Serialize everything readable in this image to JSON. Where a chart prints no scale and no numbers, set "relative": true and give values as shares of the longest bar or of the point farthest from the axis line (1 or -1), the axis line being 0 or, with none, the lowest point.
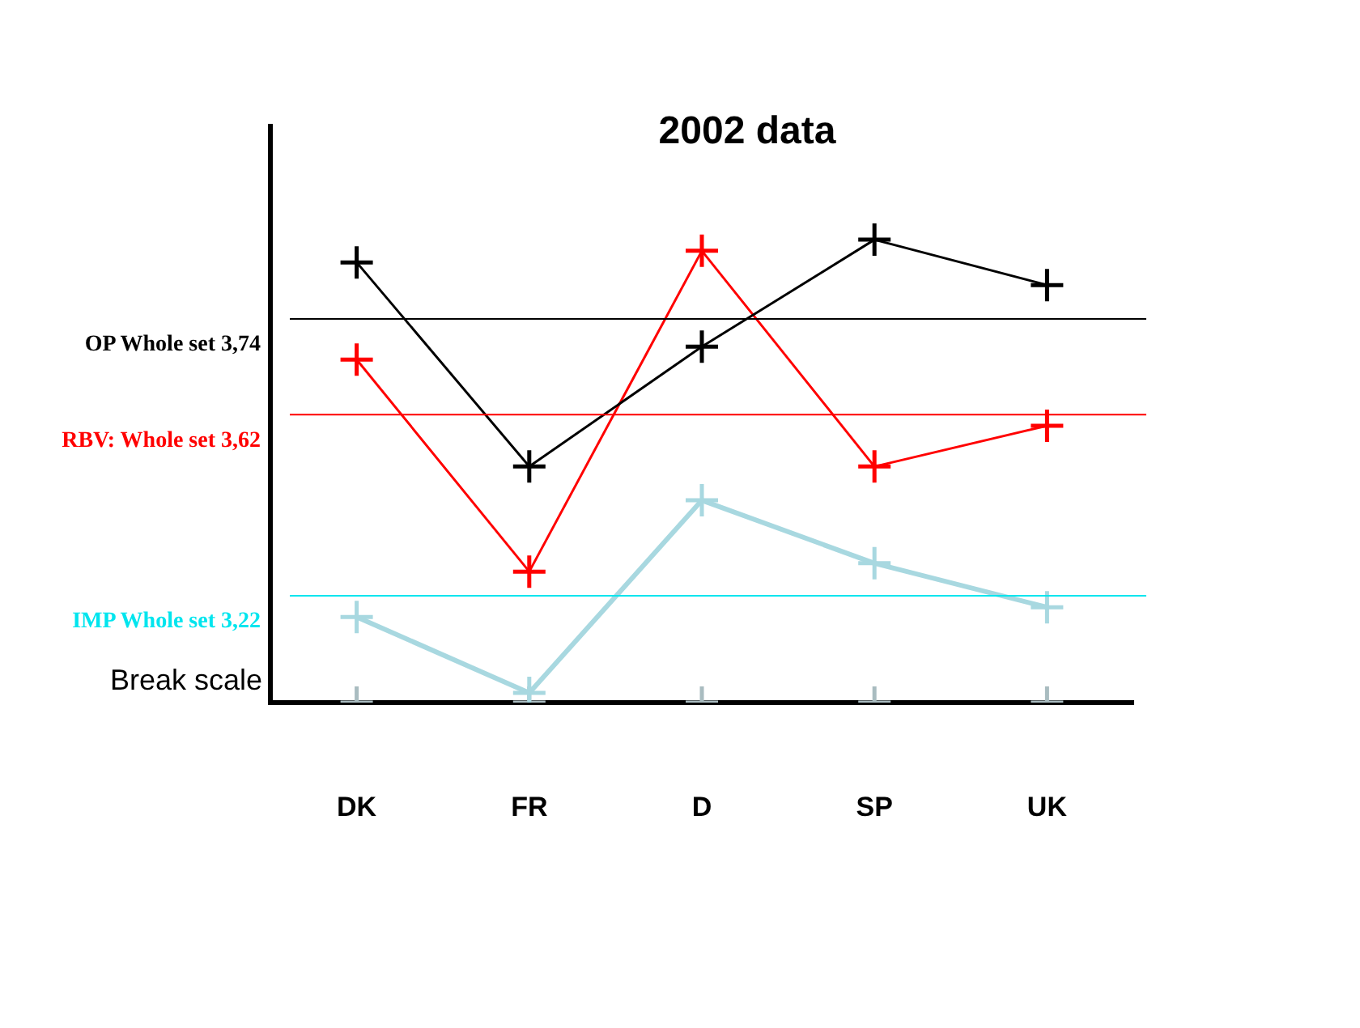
{
  "chart_data": {
    "type": "line",
    "title": "2002 data",
    "categories": [
      "DK",
      "FR",
      "D",
      "SP",
      "UK"
    ],
    "relative": true,
    "marker": "cross",
    "series": [
      {
        "color": "#000000",
        "values": [
          0.951,
          0.51,
          0.769,
          1,
          0.902
        ]
      },
      {
        "color": "#ff0000",
        "values": [
          0.741,
          0.283,
          0.976,
          0.51,
          0.598
        ]
      },
      {
        "color": "#a8d8e0",
        "values": [
          0.185,
          0.021,
          0.437,
          0.301,
          0.206
        ]
      },
      {
        "type": "scatter",
        "color": "#a9bcc0",
        "values": [
          0,
          0,
          0,
          0,
          0
        ]
      }
    ],
    "ref_lines": [
      {
        "axis": "y",
        "value": 0.829,
        "label": "OP Whole set 3,74",
        "color": "#000000"
      },
      {
        "axis": "y",
        "value": 0.622,
        "label": "RBV: Whole set 3,62",
        "color": "#ff0000"
      },
      {
        "axis": "y",
        "value": 0.231,
        "label": "IMP Whole set 3,22",
        "color": "#00e5ee"
      }
    ],
    "annotations": [
      "Break scale"
    ]
  }
}
